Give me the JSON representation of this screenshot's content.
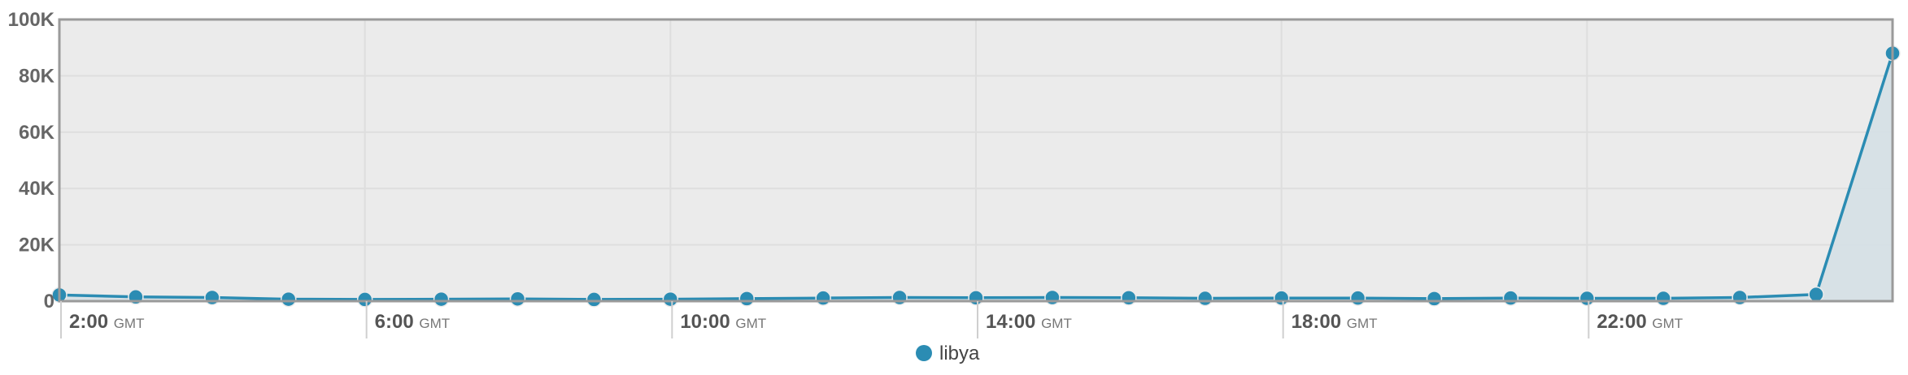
{
  "chart_data": {
    "type": "area",
    "title": "",
    "xlabel": "",
    "ylabel": "",
    "x_ticks": [
      {
        "hour": "2:00",
        "suffix": "GMT",
        "index": 0
      },
      {
        "hour": "6:00",
        "suffix": "GMT",
        "index": 4
      },
      {
        "hour": "10:00",
        "suffix": "GMT",
        "index": 8
      },
      {
        "hour": "14:00",
        "suffix": "GMT",
        "index": 12
      },
      {
        "hour": "18:00",
        "suffix": "GMT",
        "index": 16
      },
      {
        "hour": "22:00",
        "suffix": "GMT",
        "index": 20
      }
    ],
    "y_ticks": [
      {
        "value": 0,
        "label": "0"
      },
      {
        "value": 20000,
        "label": "20K"
      },
      {
        "value": 40000,
        "label": "40K"
      },
      {
        "value": 60000,
        "label": "60K"
      },
      {
        "value": 80000,
        "label": "80K"
      },
      {
        "value": 100000,
        "label": "100K"
      }
    ],
    "ylim": [
      0,
      100000
    ],
    "grid": true,
    "legend_position": "bottom-center",
    "series": [
      {
        "name": "libya",
        "color": "#2b8cb3",
        "values": [
          2200,
          1500,
          1300,
          700,
          600,
          700,
          800,
          600,
          700,
          900,
          1100,
          1300,
          1200,
          1300,
          1200,
          1000,
          1100,
          1100,
          900,
          1100,
          1000,
          1000,
          1300,
          2400,
          88000
        ]
      }
    ]
  },
  "colors": {
    "plot_background": "#ebebeb",
    "plot_border": "#9a9a9a",
    "gridline": "#dedede",
    "area_fill": "#d5e0e6",
    "series_line": "#2b8cb3"
  }
}
